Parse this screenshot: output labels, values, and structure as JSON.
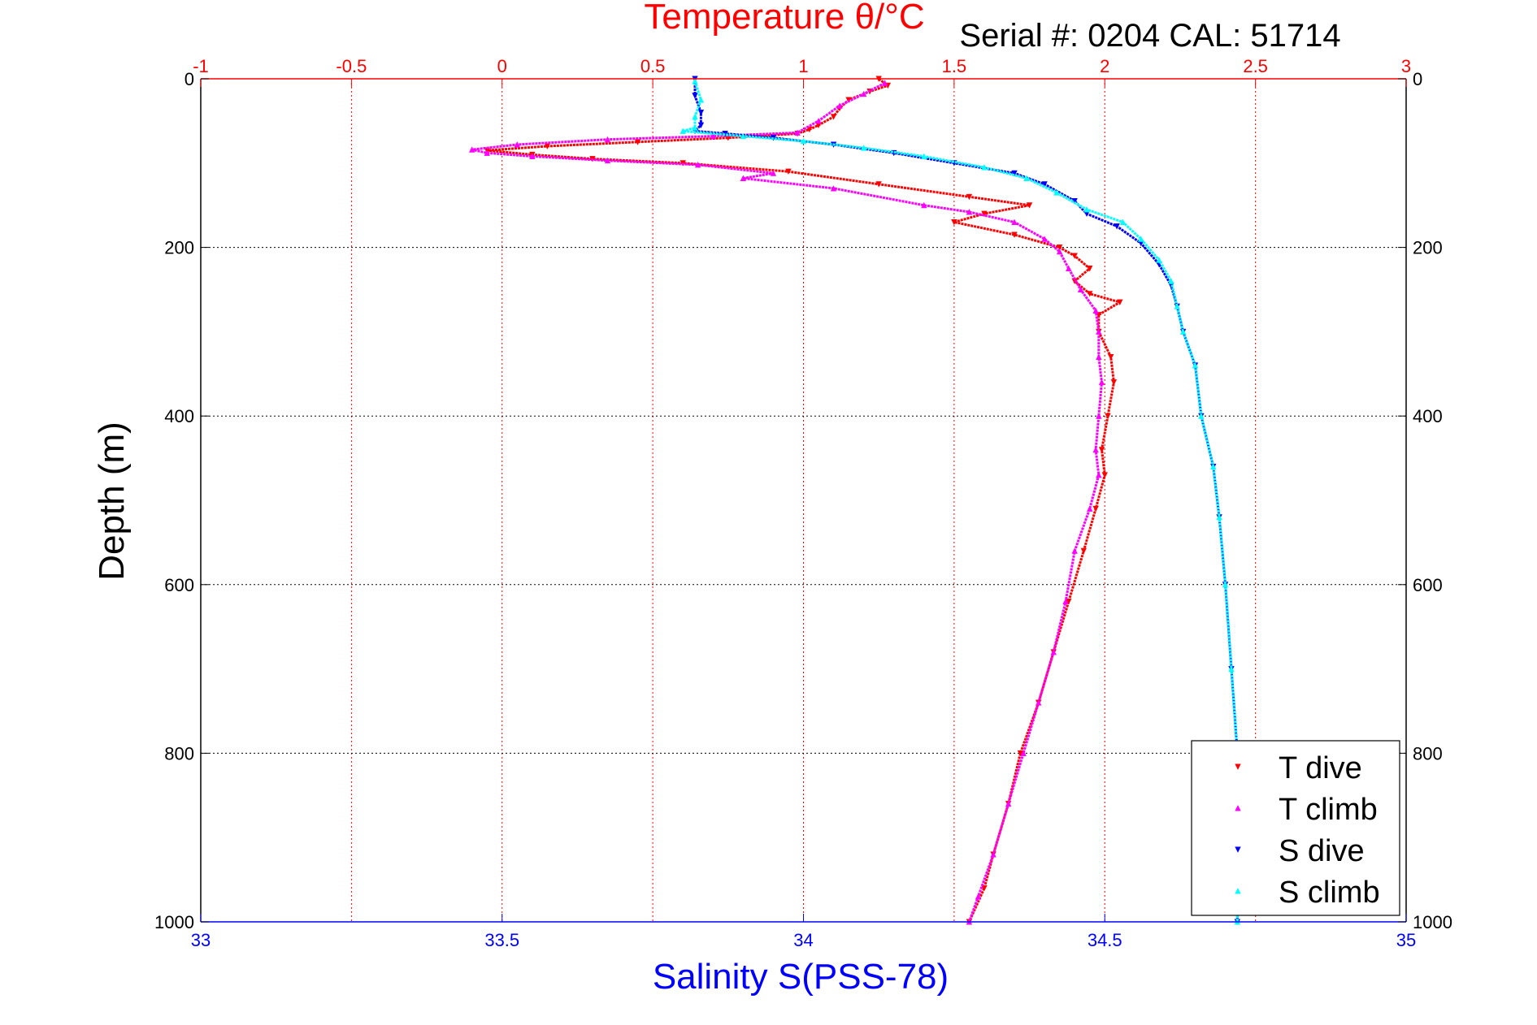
{
  "chart_data": {
    "type": "scatter",
    "title": "Serial #: 0204  CAL: 51714",
    "x_top_label": "Temperature θ/°C",
    "x_bottom_label": "Salinity S(PSS-78)",
    "y_label": "Depth (m)",
    "x_top_lim": [
      -1,
      3
    ],
    "x_bottom_lim": [
      33,
      35
    ],
    "y_lim": [
      0,
      1000
    ],
    "y_reversed": true,
    "grid": true,
    "legend_position": "bottom-right",
    "x_top_ticks": [
      "-1",
      "-0.5",
      "0",
      "0.5",
      "1",
      "1.5",
      "2",
      "2.5",
      "3"
    ],
    "x_bottom_ticks": [
      "33",
      "33.5",
      "34",
      "34.5",
      "35"
    ],
    "y_ticks": [
      "0",
      "200",
      "400",
      "600",
      "800",
      "1000"
    ],
    "colors": {
      "temperature_axis": "#ff0000",
      "salinity_axis": "#0000ff",
      "grid": "#000000"
    },
    "series": [
      {
        "name": "T dive",
        "axis": "temperature",
        "color": "#ff0000",
        "marker": "triangle-down",
        "points": [
          [
            1.25,
            0
          ],
          [
            1.28,
            8
          ],
          [
            1.22,
            15
          ],
          [
            1.15,
            25
          ],
          [
            1.12,
            35
          ],
          [
            1.1,
            45
          ],
          [
            1.05,
            55
          ],
          [
            1.02,
            60
          ],
          [
            0.98,
            65
          ],
          [
            0.75,
            70
          ],
          [
            0.45,
            75
          ],
          [
            0.15,
            80
          ],
          [
            -0.05,
            85
          ],
          [
            0.1,
            90
          ],
          [
            0.3,
            95
          ],
          [
            0.6,
            100
          ],
          [
            0.95,
            110
          ],
          [
            1.25,
            125
          ],
          [
            1.55,
            140
          ],
          [
            1.75,
            150
          ],
          [
            1.6,
            160
          ],
          [
            1.5,
            170
          ],
          [
            1.7,
            185
          ],
          [
            1.85,
            200
          ],
          [
            1.9,
            210
          ],
          [
            1.95,
            225
          ],
          [
            1.9,
            240
          ],
          [
            1.95,
            255
          ],
          [
            2.05,
            265
          ],
          [
            1.98,
            280
          ],
          [
            1.98,
            300
          ],
          [
            2.02,
            330
          ],
          [
            2.03,
            360
          ],
          [
            2.01,
            400
          ],
          [
            1.99,
            440
          ],
          [
            2.0,
            470
          ],
          [
            1.97,
            510
          ],
          [
            1.93,
            560
          ],
          [
            1.88,
            620
          ],
          [
            1.83,
            680
          ],
          [
            1.78,
            740
          ],
          [
            1.72,
            800
          ],
          [
            1.68,
            860
          ],
          [
            1.63,
            920
          ],
          [
            1.6,
            960
          ],
          [
            1.55,
            1000
          ]
        ]
      },
      {
        "name": "T climb",
        "axis": "temperature",
        "color": "#ff00ff",
        "marker": "triangle-up",
        "points": [
          [
            1.27,
            5
          ],
          [
            1.2,
            18
          ],
          [
            1.12,
            32
          ],
          [
            1.05,
            50
          ],
          [
            0.98,
            64
          ],
          [
            0.7,
            68
          ],
          [
            0.35,
            72
          ],
          [
            0.05,
            78
          ],
          [
            -0.1,
            84
          ],
          [
            -0.05,
            88
          ],
          [
            0.1,
            92
          ],
          [
            0.35,
            97
          ],
          [
            0.65,
            102
          ],
          [
            0.9,
            112
          ],
          [
            0.8,
            118
          ],
          [
            1.1,
            130
          ],
          [
            1.4,
            150
          ],
          [
            1.55,
            158
          ],
          [
            1.7,
            170
          ],
          [
            1.8,
            190
          ],
          [
            1.85,
            205
          ],
          [
            1.88,
            225
          ],
          [
            1.92,
            250
          ],
          [
            1.97,
            275
          ],
          [
            1.98,
            300
          ],
          [
            1.98,
            330
          ],
          [
            1.99,
            360
          ],
          [
            1.98,
            400
          ],
          [
            1.97,
            440
          ],
          [
            1.98,
            470
          ],
          [
            1.95,
            510
          ],
          [
            1.9,
            560
          ],
          [
            1.87,
            620
          ],
          [
            1.83,
            680
          ],
          [
            1.78,
            740
          ],
          [
            1.73,
            800
          ],
          [
            1.68,
            860
          ],
          [
            1.63,
            920
          ],
          [
            1.58,
            970
          ],
          [
            1.55,
            1000
          ]
        ]
      },
      {
        "name": "S dive",
        "axis": "salinity",
        "color": "#0000ff",
        "marker": "triangle-down",
        "points": [
          [
            33.82,
            0
          ],
          [
            33.82,
            20
          ],
          [
            33.83,
            40
          ],
          [
            33.83,
            55
          ],
          [
            33.82,
            62
          ],
          [
            33.87,
            65
          ],
          [
            33.95,
            70
          ],
          [
            34.05,
            78
          ],
          [
            34.15,
            88
          ],
          [
            34.25,
            100
          ],
          [
            34.35,
            112
          ],
          [
            34.4,
            125
          ],
          [
            34.45,
            145
          ],
          [
            34.47,
            160
          ],
          [
            34.52,
            175
          ],
          [
            34.56,
            195
          ],
          [
            34.59,
            220
          ],
          [
            34.61,
            245
          ],
          [
            34.62,
            270
          ],
          [
            34.63,
            300
          ],
          [
            34.65,
            340
          ],
          [
            34.66,
            400
          ],
          [
            34.68,
            460
          ],
          [
            34.69,
            520
          ],
          [
            34.7,
            600
          ],
          [
            34.71,
            700
          ],
          [
            34.72,
            800
          ],
          [
            34.72,
            900
          ],
          [
            34.72,
            1000
          ]
        ]
      },
      {
        "name": "S climb",
        "axis": "salinity",
        "color": "#00ffff",
        "marker": "triangle-up",
        "points": [
          [
            33.82,
            3
          ],
          [
            33.83,
            25
          ],
          [
            33.82,
            45
          ],
          [
            33.82,
            58
          ],
          [
            33.8,
            62
          ],
          [
            33.9,
            68
          ],
          [
            34.0,
            74
          ],
          [
            34.1,
            82
          ],
          [
            34.2,
            92
          ],
          [
            34.3,
            105
          ],
          [
            34.37,
            118
          ],
          [
            34.42,
            135
          ],
          [
            34.47,
            155
          ],
          [
            34.53,
            170
          ],
          [
            34.56,
            190
          ],
          [
            34.59,
            215
          ],
          [
            34.61,
            240
          ],
          [
            34.62,
            270
          ],
          [
            34.63,
            300
          ],
          [
            34.65,
            340
          ],
          [
            34.66,
            400
          ],
          [
            34.68,
            460
          ],
          [
            34.69,
            520
          ],
          [
            34.7,
            600
          ],
          [
            34.71,
            700
          ],
          [
            34.72,
            800
          ],
          [
            34.72,
            900
          ],
          [
            34.72,
            1000
          ]
        ]
      }
    ]
  }
}
